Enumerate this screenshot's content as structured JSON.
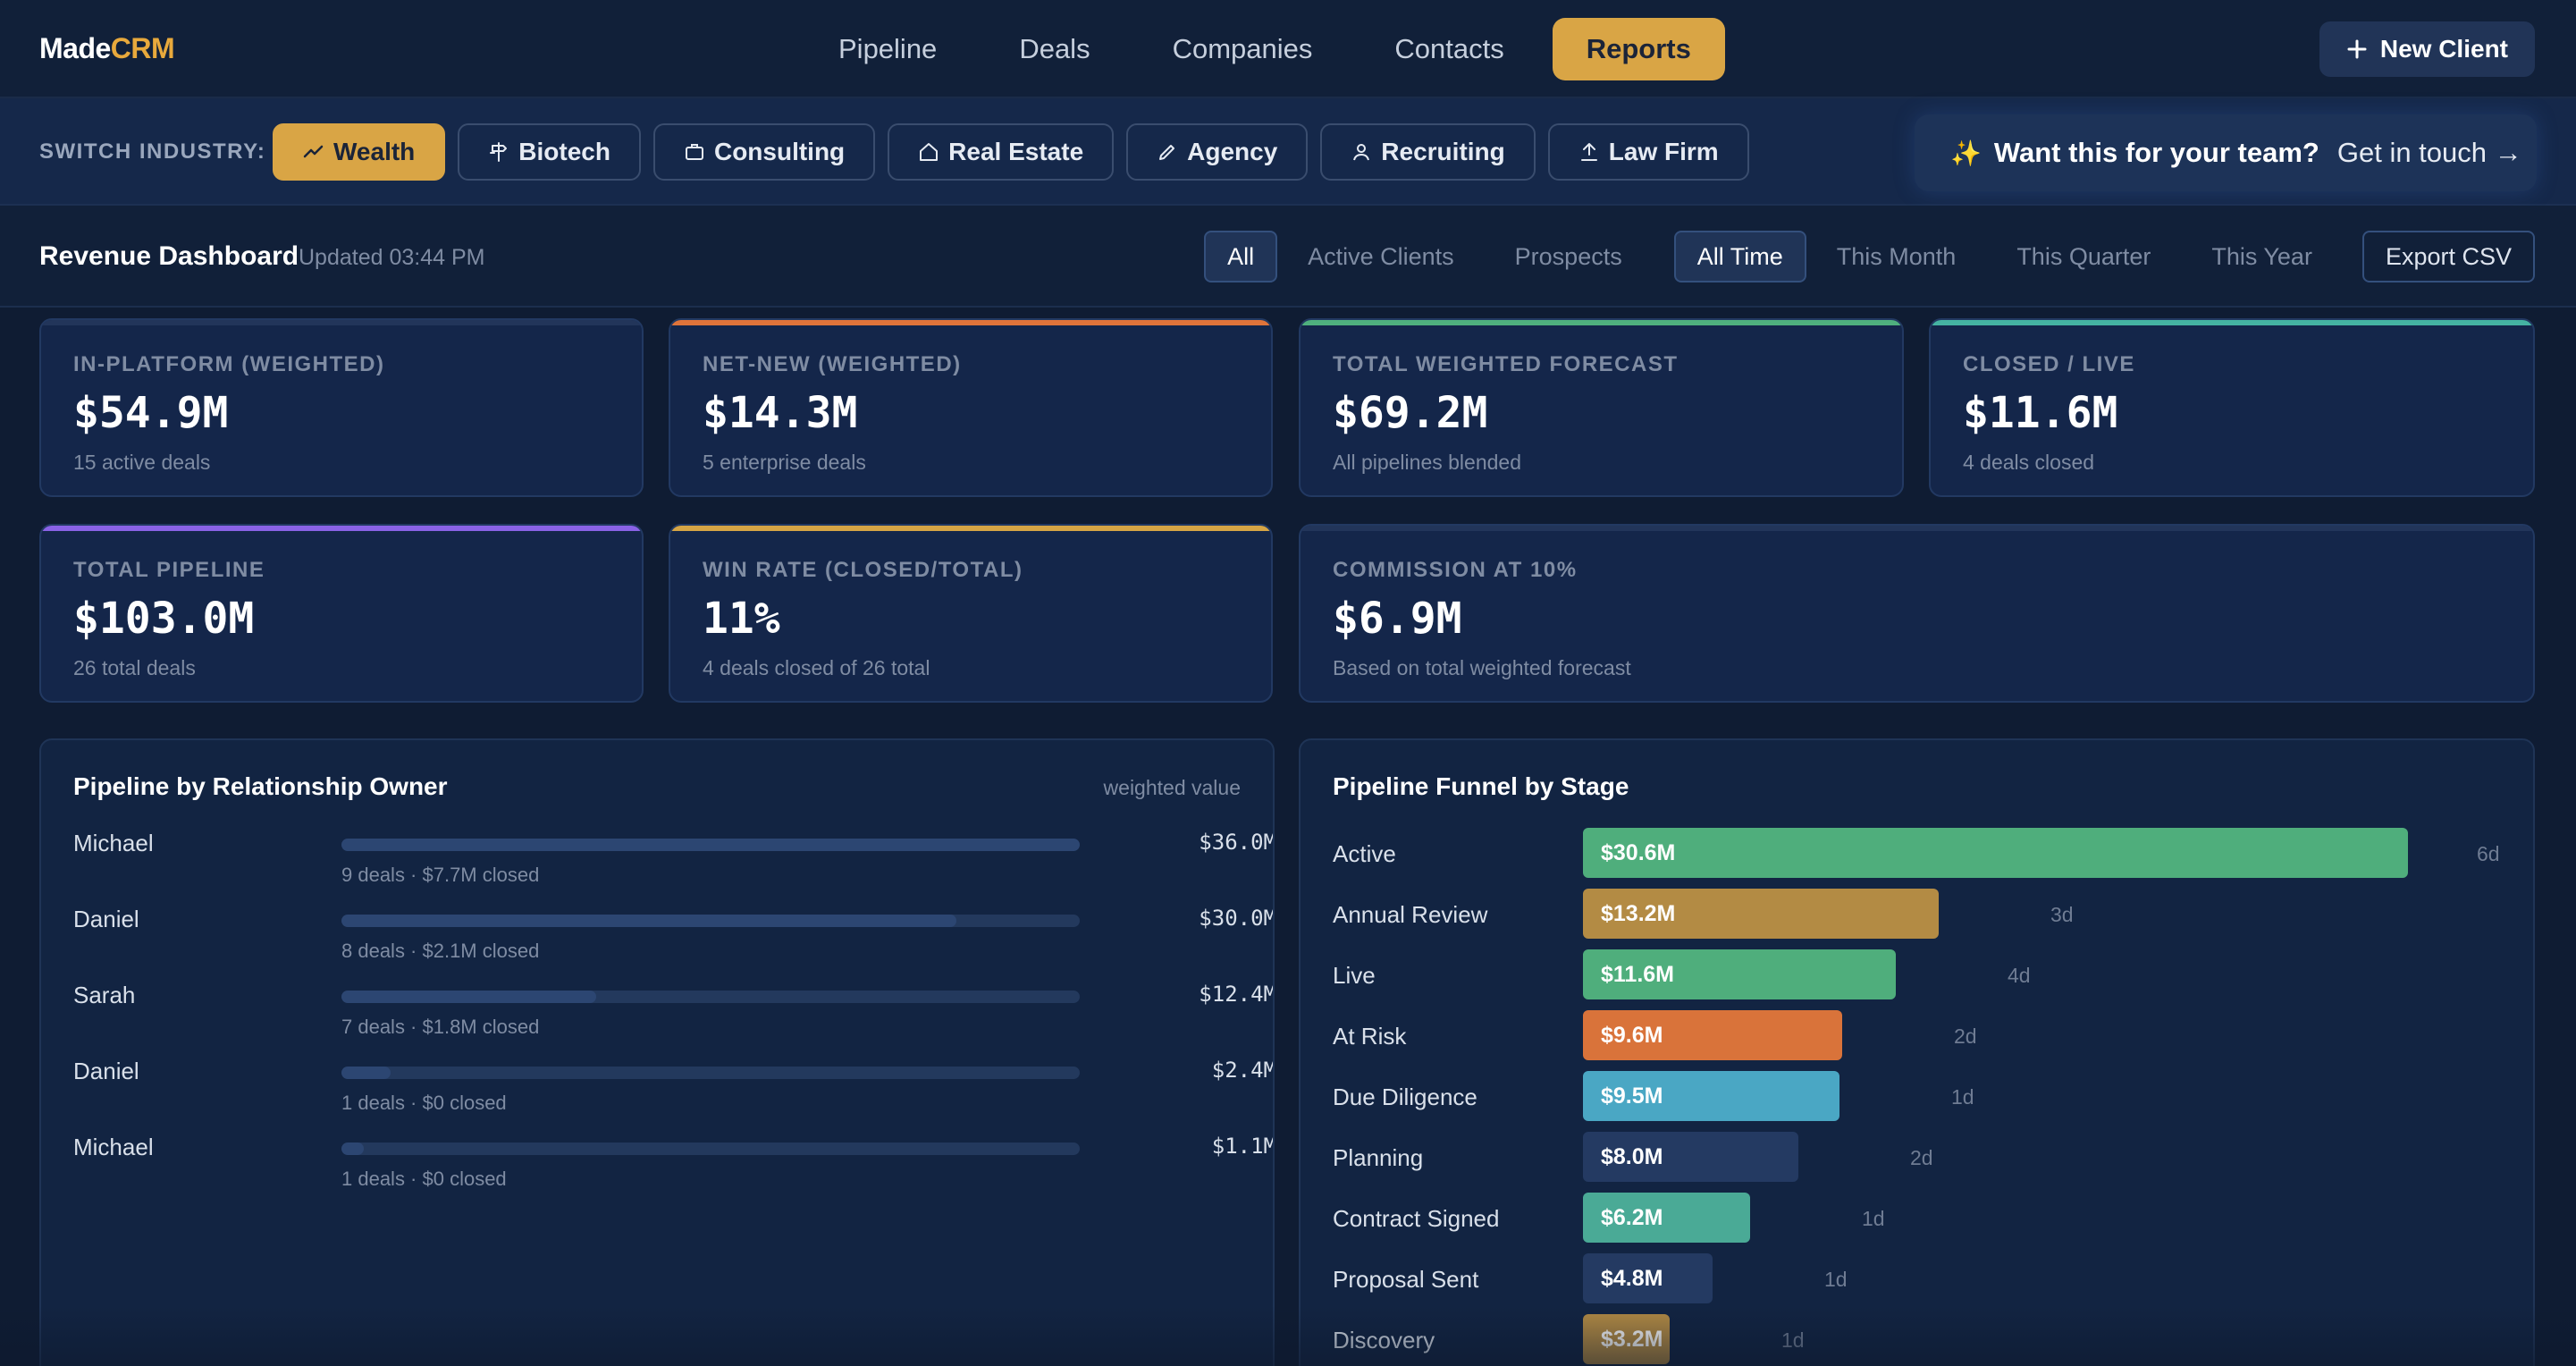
{
  "brand": {
    "name": "Made",
    "accent": "CRM"
  },
  "nav": {
    "items": [
      {
        "label": "Pipeline",
        "active": false
      },
      {
        "label": "Deals",
        "active": false
      },
      {
        "label": "Companies",
        "active": false
      },
      {
        "label": "Contacts",
        "active": false
      },
      {
        "label": "Reports",
        "active": true
      }
    ],
    "new_client_label": "New Client"
  },
  "industry": {
    "label": "SWITCH INDUSTRY:",
    "chips": [
      {
        "label": "Wealth",
        "icon": "trend-up-icon",
        "active": true
      },
      {
        "label": "Biotech",
        "icon": "signpost-icon",
        "active": false
      },
      {
        "label": "Consulting",
        "icon": "briefcase-icon",
        "active": false
      },
      {
        "label": "Real Estate",
        "icon": "home-icon",
        "active": false
      },
      {
        "label": "Agency",
        "icon": "pen-icon",
        "active": false
      },
      {
        "label": "Recruiting",
        "icon": "user-icon",
        "active": false
      },
      {
        "label": "Law Firm",
        "icon": "upload-icon",
        "active": false
      }
    ],
    "cta": {
      "spark": "✨",
      "question": "Want this for your team?",
      "link": "Get in touch →"
    }
  },
  "dashboard": {
    "title": "Revenue Dashboard",
    "updated": "Updated 03:44 PM",
    "filters": {
      "segments": [
        "All",
        "Active Clients",
        "Prospects"
      ],
      "segment_selected": "All",
      "periods": [
        "All Time",
        "This Month",
        "This Quarter",
        "This Year"
      ],
      "period_selected": "All Time",
      "export_label": "Export CSV"
    }
  },
  "kpis": [
    {
      "label": "IN-PLATFORM (WEIGHTED)",
      "value": "$54.9M",
      "sub": "15 active deals",
      "accent": "#22355a"
    },
    {
      "label": "NET-NEW (WEIGHTED)",
      "value": "$14.3M",
      "sub": "5 enterprise deals",
      "accent": "#e0743a"
    },
    {
      "label": "TOTAL WEIGHTED FORECAST",
      "value": "$69.2M",
      "sub": "All pipelines blended",
      "accent": "#4fb07e"
    },
    {
      "label": "CLOSED / LIVE",
      "value": "$11.6M",
      "sub": "4 deals closed",
      "accent": "#45b3a2"
    },
    {
      "label": "TOTAL PIPELINE",
      "value": "$103.0M",
      "sub": "26 total deals",
      "accent": "#8a62e6"
    },
    {
      "label": "WIN RATE (CLOSED/TOTAL)",
      "value": "11%",
      "sub": "4 deals closed of 26 total",
      "accent": "#d6a545"
    },
    {
      "label": "COMMISSION AT 10%",
      "value": "$6.9M",
      "sub": "Based on total weighted forecast",
      "accent": "#22355a"
    }
  ],
  "owners_panel": {
    "title": "Pipeline by Relationship Owner",
    "note": "weighted value",
    "rows": [
      {
        "name": "Michael",
        "meta": "9 deals · $7.7M closed",
        "value_label": "$36.0M",
        "value": 36.0,
        "closed": 7.7
      },
      {
        "name": "Daniel",
        "meta": "8 deals · $2.1M closed",
        "value_label": "$30.0M",
        "value": 30.0,
        "closed": 2.1
      },
      {
        "name": "Sarah",
        "meta": "7 deals · $1.8M closed",
        "value_label": "$12.4M",
        "value": 12.4,
        "closed": 1.8
      },
      {
        "name": "Daniel",
        "meta": "1 deals · $0 closed",
        "value_label": "$2.4M",
        "value": 2.4,
        "closed": 0
      },
      {
        "name": "Michael",
        "meta": "1 deals · $0 closed",
        "value_label": "$1.1M",
        "value": 1.1,
        "closed": 0
      }
    ]
  },
  "funnel_panel": {
    "title": "Pipeline Funnel by Stage",
    "stages": [
      {
        "name": "Active",
        "value_label": "$30.6M",
        "value": 30.6,
        "days": "6d",
        "color": "#4fae7c"
      },
      {
        "name": "Annual Review",
        "value_label": "$13.2M",
        "value": 13.2,
        "days": "3d",
        "color": "#b38b44"
      },
      {
        "name": "Live",
        "value_label": "$11.6M",
        "value": 11.6,
        "days": "4d",
        "color": "#4fae7c"
      },
      {
        "name": "At Risk",
        "value_label": "$9.6M",
        "value": 9.6,
        "days": "2d",
        "color": "#d9733a"
      },
      {
        "name": "Due Diligence",
        "value_label": "$9.5M",
        "value": 9.5,
        "days": "1d",
        "color": "#4aa7c4"
      },
      {
        "name": "Planning",
        "value_label": "$8.0M",
        "value": 8.0,
        "days": "2d",
        "color": "#243a62"
      },
      {
        "name": "Contract Signed",
        "value_label": "$6.2M",
        "value": 6.2,
        "days": "1d",
        "color": "#4aaa96"
      },
      {
        "name": "Proposal Sent",
        "value_label": "$4.8M",
        "value": 4.8,
        "days": "1d",
        "color": "#243a62"
      },
      {
        "name": "Discovery",
        "value_label": "$3.2M",
        "value": 3.2,
        "days": "1d",
        "color": "#b38b44"
      }
    ]
  }
}
